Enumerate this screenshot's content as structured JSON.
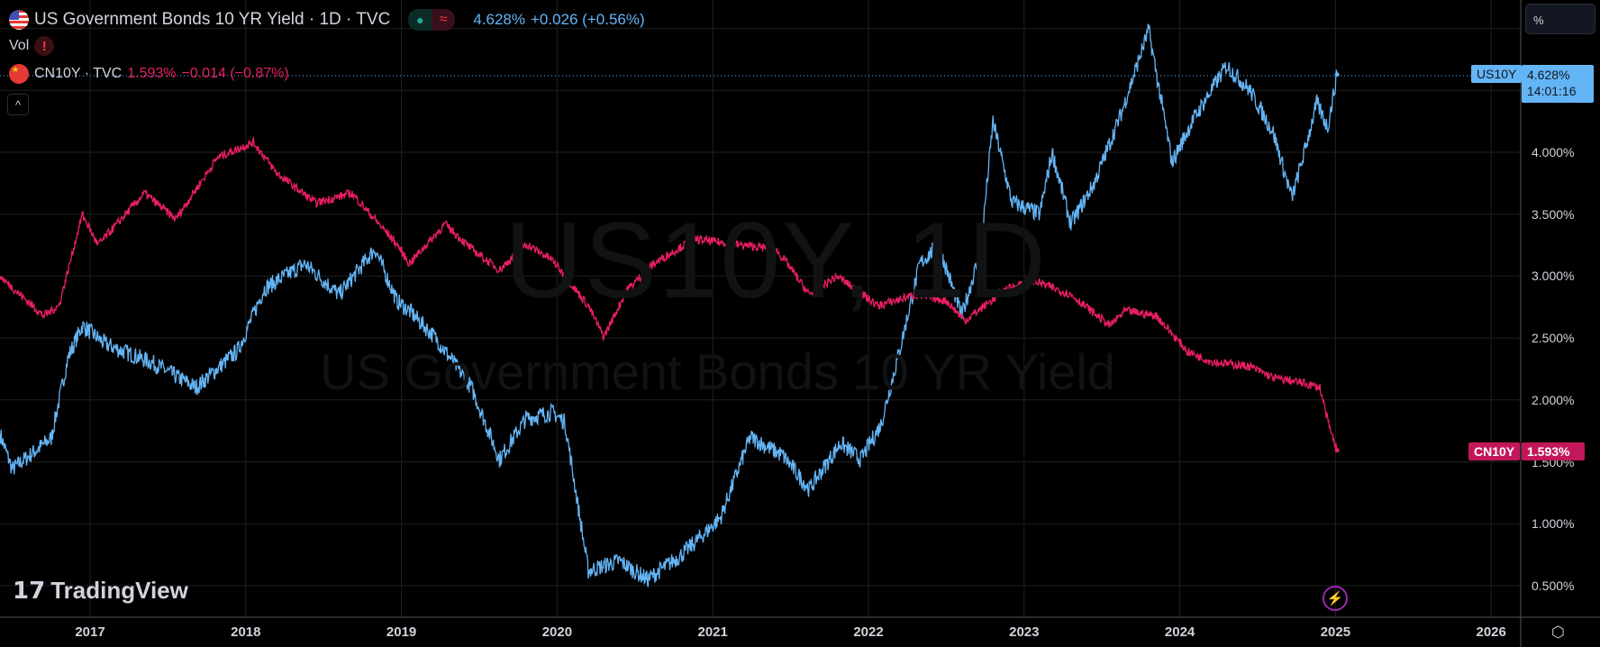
{
  "header": {
    "title": "US Government Bonds 10 YR Yield · 1D · TVC",
    "price": "4.628%",
    "change": "+0.026 (+0.56%)",
    "vol_label": "Vol",
    "vol_warning": "!",
    "compare_symbol": "CN10Y · TVC",
    "compare_price": "1.593%",
    "compare_change": "−0.014 (−0.87%)",
    "collapse": "^"
  },
  "watermark": {
    "symbol": "US10Y, 1D",
    "name": "US Government Bonds 10 YR Yield"
  },
  "branding": {
    "logo": "TradingView"
  },
  "price_axis": {
    "unit": "%",
    "ticks": [
      "4.000%",
      "3.500%",
      "3.000%",
      "2.500%",
      "2.000%",
      "1.500%",
      "1.000%",
      "0.500%"
    ]
  },
  "tags": {
    "us_symbol": "US10Y",
    "us_price": "4.628%",
    "us_countdown": "14:01:16",
    "cn_symbol": "CN10Y",
    "cn_price": "1.593%"
  },
  "colors": {
    "us": "#64b5f6",
    "cn": "#e91e63",
    "grid": "#1f1f1f"
  },
  "chart_data": {
    "type": "line",
    "title": "US Government Bonds 10 YR Yield · 1D · TVC",
    "ylabel": "%",
    "ylim": [
      0.3,
      5.2
    ],
    "grid": true,
    "x_ticks": [
      "2017",
      "2018",
      "2019",
      "2020",
      "2021",
      "2022",
      "2023",
      "2024",
      "2025",
      "2026"
    ],
    "y_ticks": [
      0.5,
      1.0,
      1.5,
      2.0,
      2.5,
      3.0,
      3.5,
      4.0,
      4.5,
      5.0
    ],
    "series": [
      {
        "name": "US10Y",
        "values": [
          [
            2016.42,
            1.73
          ],
          [
            2016.5,
            1.44
          ],
          [
            2016.75,
            1.69
          ],
          [
            2016.86,
            2.35
          ],
          [
            2016.95,
            2.6
          ],
          [
            2017.1,
            2.45
          ],
          [
            2017.4,
            2.3
          ],
          [
            2017.68,
            2.1
          ],
          [
            2017.95,
            2.4
          ],
          [
            2018.12,
            2.9
          ],
          [
            2018.38,
            3.1
          ],
          [
            2018.6,
            2.85
          ],
          [
            2018.83,
            3.22
          ],
          [
            2018.97,
            2.8
          ],
          [
            2019.05,
            2.72
          ],
          [
            2019.22,
            2.5
          ],
          [
            2019.45,
            2.1
          ],
          [
            2019.63,
            1.52
          ],
          [
            2019.8,
            1.85
          ],
          [
            2019.97,
            1.9
          ],
          [
            2020.05,
            1.82
          ],
          [
            2020.2,
            0.62
          ],
          [
            2020.4,
            0.7
          ],
          [
            2020.58,
            0.55
          ],
          [
            2020.8,
            0.75
          ],
          [
            2020.97,
            0.95
          ],
          [
            2021.05,
            1.05
          ],
          [
            2021.24,
            1.7
          ],
          [
            2021.45,
            1.55
          ],
          [
            2021.62,
            1.28
          ],
          [
            2021.82,
            1.65
          ],
          [
            2021.95,
            1.52
          ],
          [
            2022.08,
            1.8
          ],
          [
            2022.2,
            2.4
          ],
          [
            2022.33,
            3.1
          ],
          [
            2022.45,
            3.25
          ],
          [
            2022.6,
            2.68
          ],
          [
            2022.72,
            3.2
          ],
          [
            2022.8,
            4.25
          ],
          [
            2022.92,
            3.6
          ],
          [
            2023.1,
            3.5
          ],
          [
            2023.18,
            4.0
          ],
          [
            2023.3,
            3.42
          ],
          [
            2023.45,
            3.75
          ],
          [
            2023.62,
            4.3
          ],
          [
            2023.8,
            4.99
          ],
          [
            2023.95,
            3.92
          ],
          [
            2024.08,
            4.25
          ],
          [
            2024.3,
            4.7
          ],
          [
            2024.45,
            4.5
          ],
          [
            2024.6,
            4.16
          ],
          [
            2024.72,
            3.63
          ],
          [
            2024.8,
            4.0
          ],
          [
            2024.88,
            4.4
          ],
          [
            2024.95,
            4.2
          ],
          [
            2025.01,
            4.628
          ]
        ]
      },
      {
        "name": "CN10Y",
        "values": [
          [
            2016.42,
            3.0
          ],
          [
            2016.7,
            2.68
          ],
          [
            2016.8,
            2.76
          ],
          [
            2016.95,
            3.5
          ],
          [
            2017.05,
            3.25
          ],
          [
            2017.35,
            3.67
          ],
          [
            2017.55,
            3.46
          ],
          [
            2017.82,
            3.96
          ],
          [
            2018.05,
            4.08
          ],
          [
            2018.2,
            3.83
          ],
          [
            2018.45,
            3.59
          ],
          [
            2018.68,
            3.67
          ],
          [
            2018.97,
            3.26
          ],
          [
            2019.05,
            3.1
          ],
          [
            2019.28,
            3.42
          ],
          [
            2019.45,
            3.22
          ],
          [
            2019.63,
            3.05
          ],
          [
            2019.8,
            3.26
          ],
          [
            2019.97,
            3.13
          ],
          [
            2020.2,
            2.76
          ],
          [
            2020.3,
            2.51
          ],
          [
            2020.45,
            2.89
          ],
          [
            2020.62,
            3.1
          ],
          [
            2020.88,
            3.3
          ],
          [
            2021.12,
            3.26
          ],
          [
            2021.4,
            3.22
          ],
          [
            2021.48,
            3.1
          ],
          [
            2021.62,
            2.85
          ],
          [
            2021.8,
            3.0
          ],
          [
            2022.06,
            2.76
          ],
          [
            2022.3,
            2.85
          ],
          [
            2022.5,
            2.8
          ],
          [
            2022.62,
            2.64
          ],
          [
            2022.88,
            2.89
          ],
          [
            2023.05,
            2.97
          ],
          [
            2023.3,
            2.85
          ],
          [
            2023.55,
            2.6
          ],
          [
            2023.65,
            2.72
          ],
          [
            2023.85,
            2.68
          ],
          [
            2024.05,
            2.39
          ],
          [
            2024.2,
            2.31
          ],
          [
            2024.45,
            2.27
          ],
          [
            2024.6,
            2.18
          ],
          [
            2024.78,
            2.14
          ],
          [
            2024.9,
            2.1
          ],
          [
            2024.96,
            1.78
          ],
          [
            2025.01,
            1.593
          ]
        ]
      }
    ]
  }
}
